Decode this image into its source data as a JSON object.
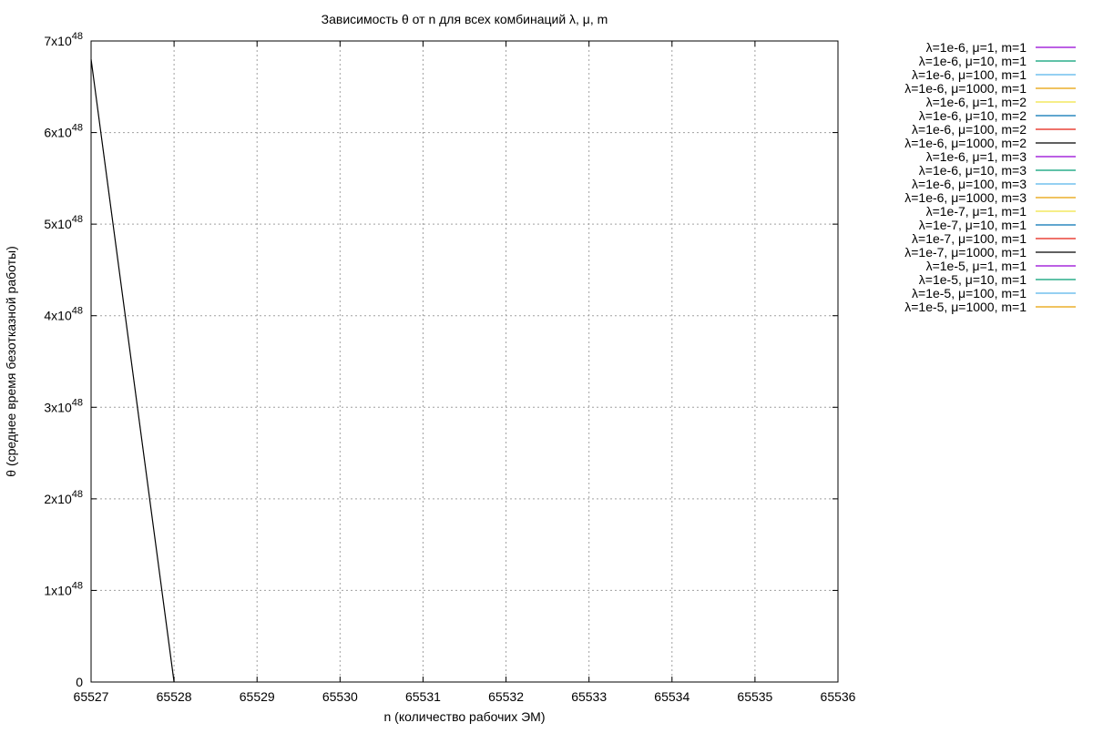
{
  "chart_data": {
    "type": "line",
    "title": "Зависимость θ от n для всех комбинаций λ, μ, m",
    "xlabel": "n (количество рабочих ЭМ)",
    "ylabel": "θ (среднее время безотказной работы)",
    "xlim": [
      65527,
      65536
    ],
    "ylim": [
      0,
      7e+48
    ],
    "x_ticks": [
      "65527",
      "65528",
      "65529",
      "65530",
      "65531",
      "65532",
      "65533",
      "65534",
      "65535",
      "65536"
    ],
    "y_ticks": [
      {
        "mantissa": "0",
        "exp": ""
      },
      {
        "mantissa": "1x10",
        "exp": "48"
      },
      {
        "mantissa": "2x10",
        "exp": "48"
      },
      {
        "mantissa": "3x10",
        "exp": "48"
      },
      {
        "mantissa": "4x10",
        "exp": "48"
      },
      {
        "mantissa": "5x10",
        "exp": "48"
      },
      {
        "mantissa": "6x10",
        "exp": "48"
      },
      {
        "mantissa": "7x10",
        "exp": "48"
      }
    ],
    "grid": true,
    "legend_position": "right, outside plot",
    "series": [
      {
        "name": "λ=1e-6, μ=1, m=1",
        "color": "#9400d3",
        "x": [],
        "y": []
      },
      {
        "name": "λ=1e-6, μ=10, m=1",
        "color": "#009e73",
        "x": [],
        "y": []
      },
      {
        "name": "λ=1e-6, μ=100, m=1",
        "color": "#56b4e9",
        "x": [],
        "y": []
      },
      {
        "name": "λ=1e-6, μ=1000, m=1",
        "color": "#e69f00",
        "x": [],
        "y": []
      },
      {
        "name": "λ=1e-6, μ=1, m=2",
        "color": "#f0e442",
        "x": [],
        "y": []
      },
      {
        "name": "λ=1e-6, μ=10, m=2",
        "color": "#0072b2",
        "x": [],
        "y": []
      },
      {
        "name": "λ=1e-6, μ=100, m=2",
        "color": "#e51e10",
        "x": [],
        "y": []
      },
      {
        "name": "λ=1e-6, μ=1000, m=2",
        "color": "#000000",
        "x": [
          65527,
          65528
        ],
        "y": [
          6.8e+48,
          0
        ]
      },
      {
        "name": "λ=1e-6, μ=1, m=3",
        "color": "#9400d3",
        "x": [],
        "y": []
      },
      {
        "name": "λ=1e-6, μ=10, m=3",
        "color": "#009e73",
        "x": [],
        "y": []
      },
      {
        "name": "λ=1e-6, μ=100, m=3",
        "color": "#56b4e9",
        "x": [],
        "y": []
      },
      {
        "name": "λ=1e-6, μ=1000, m=3",
        "color": "#e69f00",
        "x": [],
        "y": []
      },
      {
        "name": "λ=1e-7, μ=1, m=1",
        "color": "#f0e442",
        "x": [],
        "y": []
      },
      {
        "name": "λ=1e-7, μ=10, m=1",
        "color": "#0072b2",
        "x": [],
        "y": []
      },
      {
        "name": "λ=1e-7, μ=100, m=1",
        "color": "#e51e10",
        "x": [],
        "y": []
      },
      {
        "name": "λ=1e-7, μ=1000, m=1",
        "color": "#000000",
        "x": [],
        "y": []
      },
      {
        "name": "λ=1e-5, μ=1, m=1",
        "color": "#9400d3",
        "x": [],
        "y": []
      },
      {
        "name": "λ=1e-5, μ=10, m=1",
        "color": "#009e73",
        "x": [],
        "y": []
      },
      {
        "name": "λ=1e-5, μ=100, m=1",
        "color": "#56b4e9",
        "x": [],
        "y": []
      },
      {
        "name": "λ=1e-5, μ=1000, m=1",
        "color": "#e69f00",
        "x": [],
        "y": []
      }
    ]
  }
}
